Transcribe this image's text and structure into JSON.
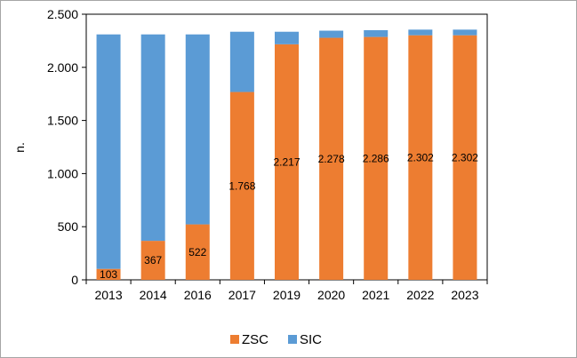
{
  "chart_data": {
    "type": "bar",
    "stacked": true,
    "categories": [
      "2013",
      "2014",
      "2016",
      "2017",
      "2019",
      "2020",
      "2021",
      "2022",
      "2023"
    ],
    "series": [
      {
        "name": "ZSC",
        "color": "#ed7d31",
        "values": [
          103,
          367,
          522,
          1768,
          2217,
          2278,
          2286,
          2302,
          2302
        ]
      },
      {
        "name": "SIC",
        "color": "#5b9bd5",
        "values": [
          2207,
          1943,
          1788,
          567,
          118,
          67,
          64,
          53,
          53
        ]
      }
    ],
    "data_labels": [
      "103",
      "367",
      "522",
      "1.768",
      "2.217",
      "2.278",
      "2.286",
      "2.302",
      "2.302"
    ],
    "ylabel": "n.",
    "ylim": [
      0,
      2500
    ],
    "yticks": [
      0,
      500,
      1000,
      1500,
      2000,
      2500
    ],
    "ytick_labels": [
      "0",
      "500",
      "1.000",
      "1.500",
      "2.000",
      "2.500"
    ],
    "grid": false,
    "legend_position": "bottom"
  }
}
